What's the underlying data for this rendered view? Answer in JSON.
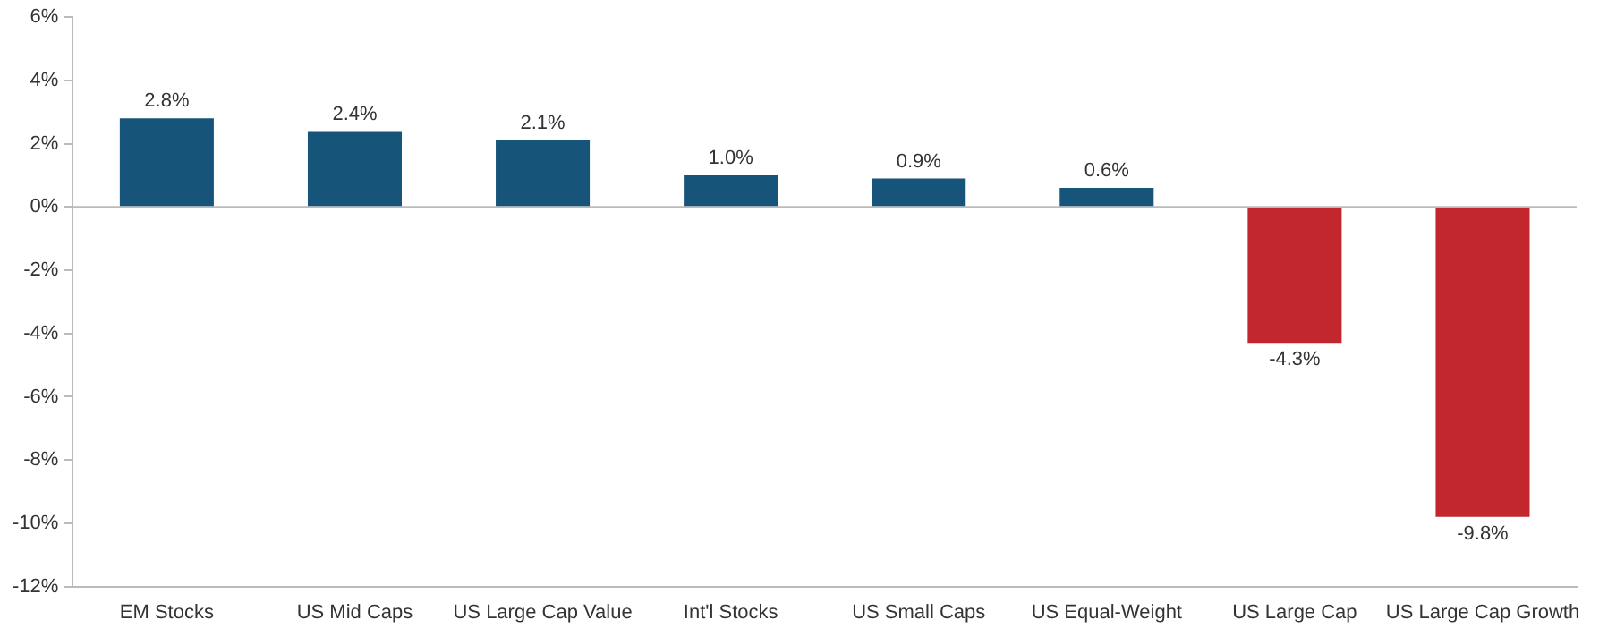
{
  "chart_data": {
    "type": "bar",
    "categories": [
      "EM Stocks",
      "US Mid Caps",
      "US Large Cap Value",
      "Int'l Stocks",
      "US Small Caps",
      "US Equal-Weight",
      "US Large Cap",
      "US Large Cap Growth"
    ],
    "values": [
      2.8,
      2.4,
      2.1,
      1.0,
      0.9,
      0.6,
      -4.3,
      -9.8
    ],
    "colors": [
      "#17547a",
      "#17547a",
      "#17547a",
      "#17547a",
      "#17547a",
      "#17547a",
      "#c1272d",
      "#c1272d"
    ],
    "value_labels": [
      "2.8%",
      "2.4%",
      "2.1%",
      "1.0%",
      "0.9%",
      "0.6%",
      "-4.3%",
      "-9.8%"
    ],
    "ylim": [
      -12,
      6
    ],
    "yticks": [
      {
        "value": 6,
        "label": "6%"
      },
      {
        "value": 4,
        "label": "4%"
      },
      {
        "value": 2,
        "label": "2%"
      },
      {
        "value": 0,
        "label": "0%"
      },
      {
        "value": -2,
        "label": "-2%"
      },
      {
        "value": -4,
        "label": "-4%"
      },
      {
        "value": -6,
        "label": "-6%"
      },
      {
        "value": -8,
        "label": "-8%"
      },
      {
        "value": -10,
        "label": "-10%"
      },
      {
        "value": -12,
        "label": "-12%"
      }
    ],
    "ref_lines": [
      {
        "axis": "y",
        "value": 0,
        "color": "#bbbbbb"
      }
    ],
    "grid": false,
    "legend": false
  }
}
